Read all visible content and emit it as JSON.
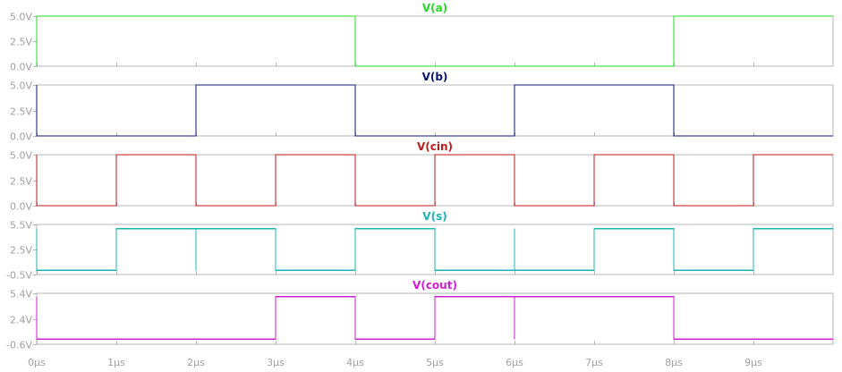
{
  "chart_data": {
    "type": "line",
    "x_unit": "µs",
    "xlim": [
      0,
      10
    ],
    "x_ticks": [
      "0µs",
      "1µs",
      "2µs",
      "3µs",
      "4µs",
      "5µs",
      "6µs",
      "7µs",
      "8µs",
      "9µs"
    ],
    "panels": [
      {
        "name": "V(a)",
        "color": "#22dd22",
        "ylim": [
          0,
          5
        ],
        "y_ticks": [
          {
            "value": 5.0,
            "label": "5.0V"
          },
          {
            "value": 2.5,
            "label": "2.5V"
          },
          {
            "value": 0.0,
            "label": "0.0V"
          }
        ],
        "x": [
          0,
          0,
          4,
          4,
          8,
          8,
          10
        ],
        "y": [
          0,
          5,
          5,
          0,
          0,
          5,
          5
        ]
      },
      {
        "name": "V(b)",
        "color": "#0b1470",
        "ylim": [
          0,
          5
        ],
        "y_ticks": [
          {
            "value": 5.0,
            "label": "5.0V"
          },
          {
            "value": 2.5,
            "label": "2.5V"
          },
          {
            "value": 0.0,
            "label": "0.0V"
          }
        ],
        "x": [
          0,
          0,
          2,
          2,
          4,
          4,
          6,
          6,
          8,
          8,
          10
        ],
        "y": [
          5,
          0,
          0,
          5,
          5,
          0,
          0,
          5,
          5,
          0,
          0
        ]
      },
      {
        "name": "V(cin)",
        "color": "#c01a1a",
        "ylim": [
          0,
          5
        ],
        "y_ticks": [
          {
            "value": 5.0,
            "label": "5.0V"
          },
          {
            "value": 2.5,
            "label": "2.5V"
          },
          {
            "value": 0.0,
            "label": "0.0V"
          }
        ],
        "x": [
          0,
          0,
          1,
          1,
          2,
          2,
          3,
          3,
          4,
          4,
          5,
          5,
          6,
          6,
          7,
          7,
          8,
          8,
          9,
          9,
          10
        ],
        "y": [
          5,
          0,
          0,
          5,
          5,
          0,
          0,
          5,
          5,
          0,
          0,
          5,
          5,
          0,
          0,
          5,
          5,
          0,
          0,
          5,
          5
        ]
      },
      {
        "name": "V(s)",
        "color": "#1ab4b4",
        "ylim": [
          -0.5,
          5.5
        ],
        "y_ticks": [
          {
            "value": 5.5,
            "label": "5.5V"
          },
          {
            "value": 2.5,
            "label": "2.5V"
          },
          {
            "value": -0.5,
            "label": "-0.5V"
          }
        ],
        "x": [
          0,
          0,
          1,
          1,
          2,
          2,
          2,
          2,
          3,
          3,
          4,
          4,
          5,
          5,
          6,
          6,
          6,
          6,
          7,
          7,
          8,
          8,
          9,
          9,
          10
        ],
        "y": [
          5,
          0,
          0,
          5,
          5,
          0,
          5,
          5,
          5,
          0,
          0,
          5,
          5,
          0,
          0,
          5,
          0,
          0,
          0,
          5,
          5,
          0,
          0,
          5,
          5
        ]
      },
      {
        "name": "V(cout)",
        "color": "#d21ed2",
        "ylim": [
          -0.6,
          5.4
        ],
        "y_ticks": [
          {
            "value": 5.4,
            "label": "5.4V"
          },
          {
            "value": 2.4,
            "label": "2.4V"
          },
          {
            "value": -0.6,
            "label": "-0.6V"
          }
        ],
        "x": [
          0,
          0,
          3,
          3,
          4,
          4,
          5,
          5,
          6,
          6,
          6,
          8,
          8,
          10
        ],
        "y": [
          5,
          0,
          0,
          5,
          5,
          0,
          0,
          5,
          5,
          0,
          5,
          5,
          0,
          0
        ]
      }
    ]
  }
}
